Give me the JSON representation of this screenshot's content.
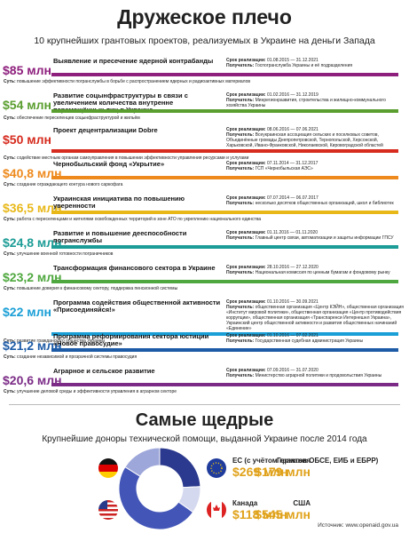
{
  "header": {
    "title": "Дружеское плечо",
    "subtitle": "10 крупнейших грантовых проектов, реализуемых в Украине на деньги Запада"
  },
  "labels": {
    "period": "Срок реализации:",
    "recipient": "Получатель:",
    "essence": "Суть:"
  },
  "projects": [
    {
      "amount": "$85 млн",
      "color": "#8e1f7d",
      "title": "Выявление и пресечение ядерной контрабанды",
      "period": "01.08.2015 — 31.12.2021",
      "recipient": "Госпогранслужба Украины и её подразделения",
      "essence": "повышение эффективности погранслужбы в борьбе с распространением ядерных и радиоактивных материалов"
    },
    {
      "amount": "$54 млн",
      "color": "#5a9e2f",
      "title": "Развитие соцынфраструктуры в связи с увеличением количества внутренне перемещённых лиц в Украине",
      "period": "01.02.2016 — 31.12.2019",
      "recipient": "Минрегионразвития, строительства и жилищно-коммунального хозяйства Украины",
      "essence": "обеспечение переселенцев соцынфраструктурой и жильём"
    },
    {
      "amount": "$50 млн",
      "color": "#d62b1e",
      "title": "Проект децентрализации Dobre",
      "period": "08.06.2016 — 07.06.2021",
      "recipient": "Всеукраинская ассоциация сельских и поселковых советов, Объединённые громады Днепропетровской, Тернопольской, Херсонской, Харьковской, Ивано-Франковской, Николаевской, Кировоградской областей",
      "essence": "содействие местным органам самоуправления в повышении эффективности управления ресурсами и услугами"
    },
    {
      "amount": "$40,8 млн",
      "color": "#ee8a1d",
      "title": "Чернобыльский фонд «Укрытие»",
      "period": "07.11.2014 — 31.12.2017",
      "recipient": "ГСП «Чернобыльская АЭС»",
      "essence": "создание ограждающего контура нового саркофага"
    },
    {
      "amount": "$36,5 млн",
      "color": "#e8b818",
      "title": "Украинская инициатива по повышению уверенности",
      "period": "07.07.2014 — 06.07.2017",
      "recipient": "несколько десятков общественных организаций, школ и библиотек",
      "essence": "работа с переселенцами и жителями освобожденных территорий в зоне АТО по укреплению национального единства"
    },
    {
      "amount": "$24,8 млн",
      "color": "#1c9c96",
      "title": "Развитие и повышение дееспособности погранслужбы",
      "period": "01.11.2016 — 01.11.2020",
      "recipient": "Главный центр связи, автоматизации и защиты информации ГПСУ",
      "essence": "улучшение военной готовности пограничников"
    },
    {
      "amount": "$23,2 млн",
      "color": "#4fa83f",
      "title": "Трансформация финансового сектора в Украине",
      "period": "28.10.2016 — 27.12.2020",
      "recipient": "Национальная комиссия по ценным бумагам и фондовому рынку",
      "essence": "повышение доверия к финансовому сектору, поддержка пенсионной системы"
    },
    {
      "amount": "$22 млн",
      "color": "#1a9fd6",
      "title": "Программа содействия общественной активности «Присоединяйся!»",
      "period": "01.10.2016 — 30.09.2021",
      "recipient": "общественная организация «Центр КЭЙН», общественная организация «Институт мировой политики», общественная организация «Центр противодействия коррупции», общественная организация «Транспаренси Интернешнл Украина», Украинский центр общественной активности и развития общественных начинаний «Единение»",
      "essence": "развитие гражданского общества Украины"
    },
    {
      "amount": "$21,2 млн",
      "color": "#1d5ba6",
      "title": "Программа реформирования сектора юстиции «Новое правосудие»",
      "period": "01.10.2016 — 07.02.2021",
      "recipient": "Государственная судебная администрация Украины",
      "essence": "создание независимой и прозрачной системы правосудия"
    },
    {
      "amount": "$20,6 млн",
      "color": "#7b2b86",
      "title": "Аграрное и сельское развитие",
      "period": "07.09.2016 — 31.07.2020",
      "recipient": "Министерство аграрной политики и продовольствия Украины",
      "essence": "улучшение деловой среды и эффективности управления в аграрном секторе"
    }
  ],
  "chart_data": {
    "type": "donut",
    "title": "Самые щедрые",
    "subtitle": "Крупнейшие доноры технической помощи, выданной Украине после 2014 года",
    "categories": [
      "ЕС (с учётом грантов ОБСЕ, ЕИБ и ЕБРР)",
      "Канада",
      "США",
      "Германия"
    ],
    "values": [
      269,
      118,
      545,
      179
    ],
    "value_labels": [
      "$269 млн",
      "$118 млн",
      "$545 млн",
      "$179 млн"
    ],
    "colors": [
      "#2b3a8e",
      "#d5d9ef",
      "#4356b8",
      "#9ea7da"
    ],
    "source": "Источник: www.openaid.gov.ua"
  }
}
